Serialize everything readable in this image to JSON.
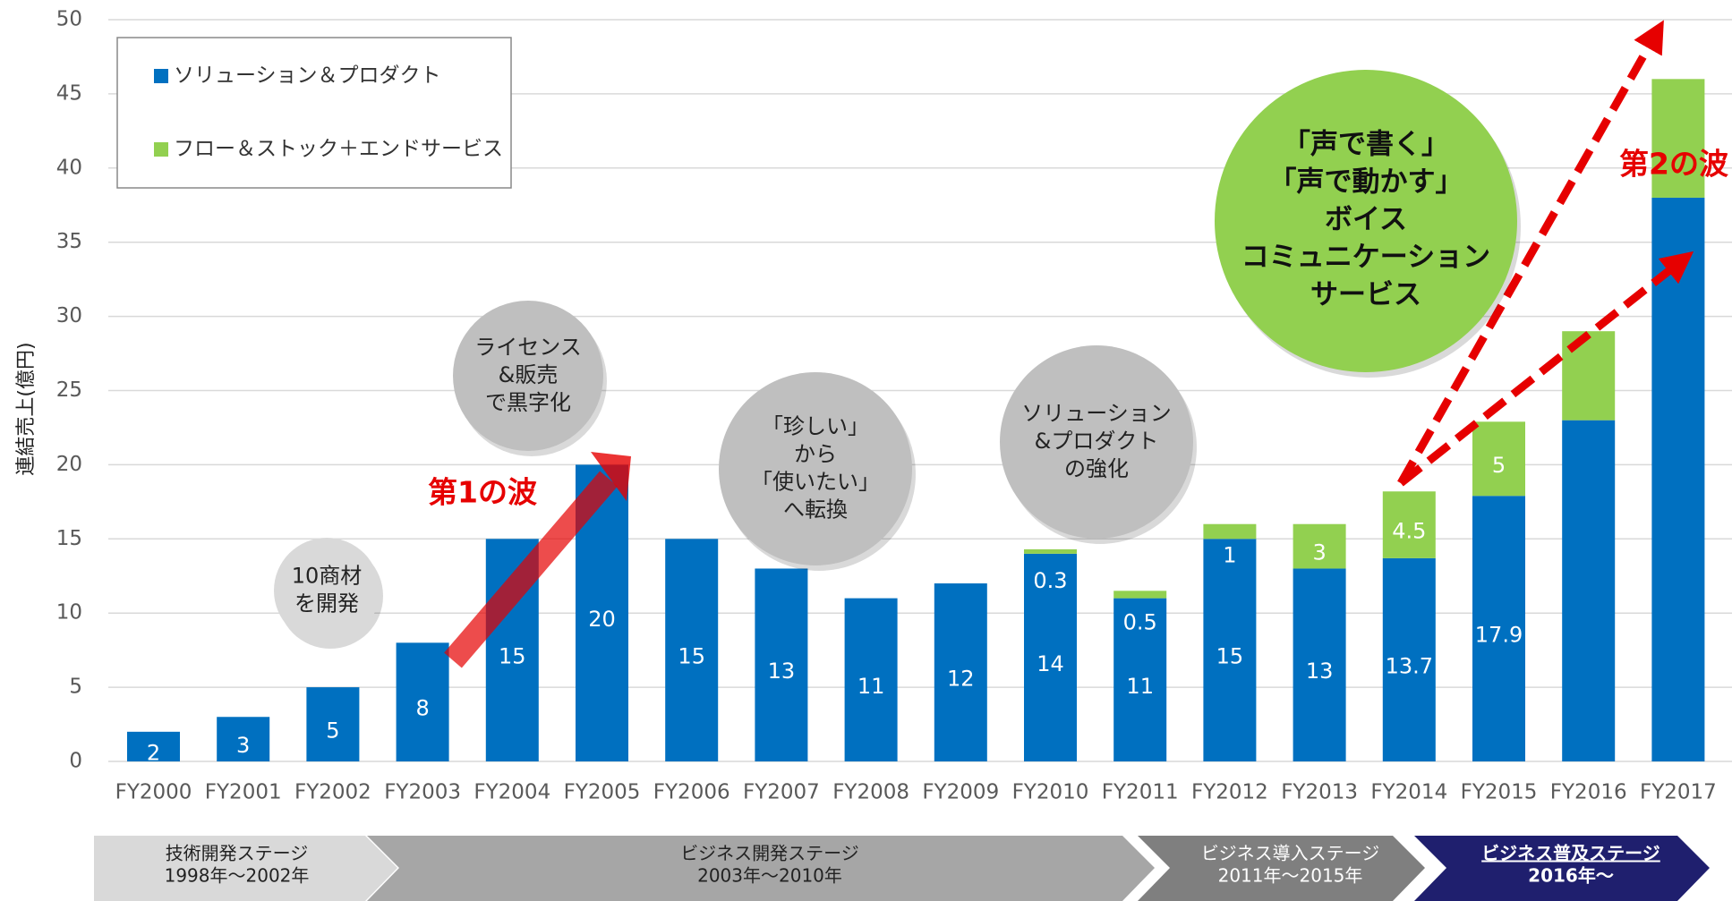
{
  "chart_data": {
    "type": "bar",
    "stacked": true,
    "y_label": "連結売上(億円)",
    "categories": [
      "FY2000",
      "FY2001",
      "FY2002",
      "FY2003",
      "FY2004",
      "FY2005",
      "FY2006",
      "FY2007",
      "FY2008",
      "FY2009",
      "FY2010",
      "FY2011",
      "FY2012",
      "FY2013",
      "FY2014",
      "FY2015",
      "FY2016",
      "FY2017"
    ],
    "series": [
      {
        "name": "ソリューション＆プロダクト",
        "color": "#0070c0",
        "values": [
          2,
          3,
          5,
          8,
          15,
          20,
          15,
          13,
          11,
          12,
          14,
          11,
          15,
          13,
          13.7,
          17.9,
          23,
          38
        ],
        "value_labels": [
          "2",
          "3",
          "5",
          "8",
          "15",
          "20",
          "15",
          "13",
          "11",
          "12",
          "14",
          "11",
          "15",
          "13",
          "13.7",
          "17.9",
          null,
          null
        ]
      },
      {
        "name": "フロー＆ストック＋エンドサービス",
        "color": "#92d050",
        "values": [
          null,
          null,
          null,
          null,
          null,
          null,
          null,
          null,
          null,
          null,
          0.3,
          0.5,
          1,
          3,
          4.5,
          5,
          6,
          8
        ],
        "value_labels": [
          null,
          null,
          null,
          null,
          null,
          null,
          null,
          null,
          null,
          null,
          "0.3",
          "0.5",
          "1",
          "3",
          "4.5",
          "5",
          null,
          null
        ]
      }
    ],
    "ylim": [
      0,
      50
    ],
    "yticks": [
      0,
      5,
      10,
      15,
      20,
      25,
      30,
      35,
      40,
      45,
      50
    ],
    "grid": true,
    "annotations": [
      {
        "lines": [
          "10商材",
          "を開発"
        ]
      },
      {
        "lines": [
          "ライセンス",
          "&販売",
          "で黒字化"
        ]
      },
      {
        "lines": [
          "「珍しい」",
          "から",
          "「使いたい」",
          "へ転換"
        ]
      },
      {
        "lines": [
          "ソリューション",
          "&プロダクト",
          "の強化"
        ]
      },
      {
        "lines": [
          "｢声で書く｣",
          "「声で動かす」",
          "ボイス",
          "コミュニケーション",
          "サービス"
        ]
      }
    ],
    "waves": [
      "第1の波",
      "第2の波"
    ],
    "stages": [
      {
        "name": "技術開発ステージ",
        "period": "1998年～2002年"
      },
      {
        "name": "ビジネス開発ステージ",
        "period": "2003年～2010年"
      },
      {
        "name": "ビジネス導入ステージ",
        "period": "2011年～2015年"
      },
      {
        "name": "ビジネス普及ステージ",
        "period": "2016年～"
      }
    ]
  }
}
